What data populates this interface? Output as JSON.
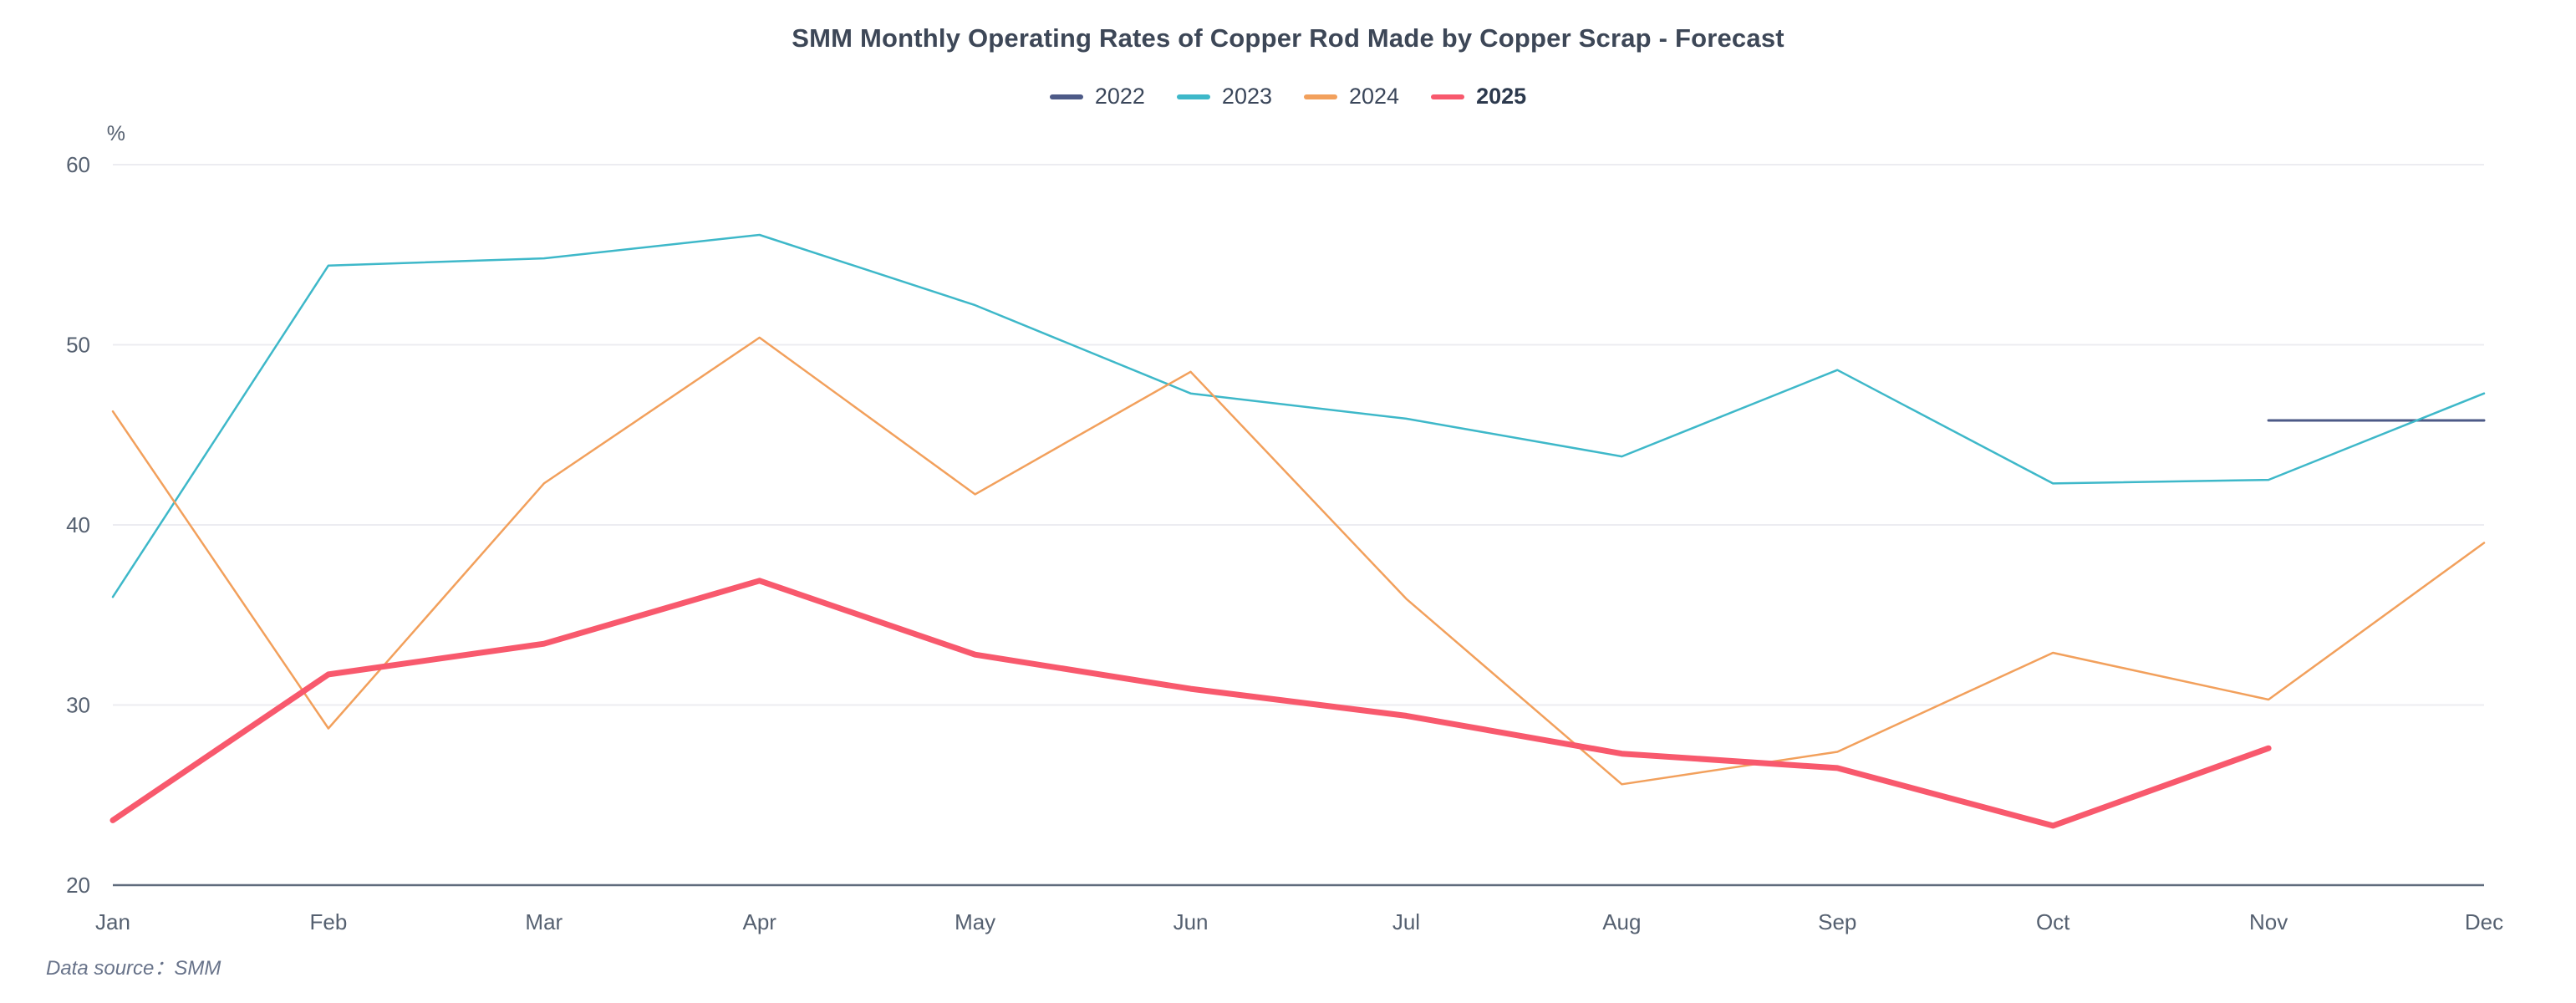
{
  "title": "SMM Monthly Operating Rates of Copper Rod Made by Copper Scrap - Forecast",
  "unit_label": "%",
  "source_note": "Data source：SMM",
  "colors": {
    "title_text": "#3d4757",
    "legend_text": "#3a465a",
    "axis_line": "#5f6b7c",
    "gridline": "#ececf1",
    "axis_label_text": "#556070",
    "source_text": "#68738a",
    "series_2022": "#4d5a87",
    "series_2023": "#3eb8c9",
    "series_2024": "#f2a05c",
    "series_2025": "#f8596d"
  },
  "chart_data": {
    "type": "line",
    "title": "SMM Monthly Operating Rates of Copper Rod Made by Copper Scrap - Forecast",
    "categories": [
      "Jan",
      "Feb",
      "Mar",
      "Apr",
      "May",
      "Jun",
      "Jul",
      "Aug",
      "Sep",
      "Oct",
      "Nov",
      "Dec"
    ],
    "series": [
      {
        "name": "2022",
        "color": "#4d5a87",
        "line_width": 3,
        "bold_legend": false,
        "values": [
          null,
          null,
          null,
          null,
          null,
          null,
          null,
          null,
          null,
          null,
          45.8,
          45.8
        ]
      },
      {
        "name": "2023",
        "color": "#3eb8c9",
        "line_width": 2.5,
        "bold_legend": false,
        "values": [
          36.0,
          54.4,
          54.8,
          56.1,
          52.2,
          47.3,
          45.9,
          43.8,
          48.6,
          42.3,
          42.5,
          47.3
        ]
      },
      {
        "name": "2024",
        "color": "#f2a05c",
        "line_width": 2.5,
        "bold_legend": false,
        "values": [
          46.3,
          28.7,
          42.3,
          50.4,
          41.7,
          48.5,
          35.9,
          25.6,
          27.4,
          32.9,
          30.3,
          39.0
        ]
      },
      {
        "name": "2025",
        "color": "#f8596d",
        "line_width": 7,
        "bold_legend": true,
        "values": [
          23.6,
          31.7,
          33.4,
          36.9,
          32.8,
          30.9,
          29.4,
          27.3,
          26.5,
          23.3,
          27.6,
          null
        ]
      }
    ],
    "xlabel": "",
    "ylabel": "%",
    "ylim": [
      20,
      60
    ],
    "ytick_step": 10,
    "yticks": [
      20,
      30,
      40,
      50,
      60
    ],
    "grid": true,
    "legend_position": "top",
    "legend_entries": [
      "2022",
      "2023",
      "2024",
      "2025"
    ]
  }
}
